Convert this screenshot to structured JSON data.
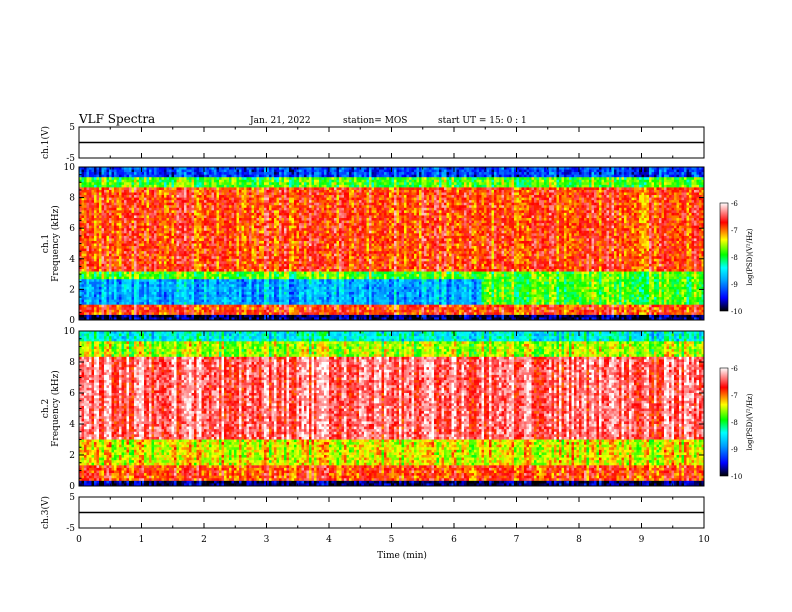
{
  "header": {
    "title": "VLF Spectra",
    "date": "Jan. 21, 2022",
    "station": "station= MOS",
    "start": "start  UT =   15: 0  : 1"
  },
  "colors": {
    "scale": [
      "#000000",
      "#0000ff",
      "#00a0ff",
      "#00ffff",
      "#00ff00",
      "#ffff00",
      "#ff0000",
      "#ffffff"
    ]
  },
  "chart_data": [
    {
      "type": "line",
      "panel": "ch1-waveform",
      "ylabel": "ch.1(V)",
      "ylim": [
        -5,
        5
      ],
      "yticks": [
        "5",
        "-5"
      ],
      "x": [
        0,
        10
      ],
      "series": [
        {
          "values": [
            0.0,
            0.0
          ]
        }
      ]
    },
    {
      "type": "heatmap",
      "panel": "ch1-spectrogram",
      "ylabel_channel": "ch.1",
      "ylabel": "Frequency (kHz)",
      "ylim": [
        0,
        10
      ],
      "yticks": [
        "0",
        "2",
        "4",
        "6",
        "8",
        "10"
      ],
      "xlim": [
        0,
        10
      ],
      "colorbar": {
        "label": "log(PSD)(V²/Hz)",
        "range": [
          -10,
          -6
        ],
        "ticks": [
          "-6",
          "-7",
          "-8",
          "-9",
          "-10"
        ]
      }
    },
    {
      "type": "heatmap",
      "panel": "ch2-spectrogram",
      "ylabel_channel": "ch.2",
      "ylabel": "Frequency (kHz)",
      "ylim": [
        0,
        10
      ],
      "yticks": [
        "0",
        "2",
        "4",
        "6",
        "8",
        "10"
      ],
      "xlim": [
        0,
        10
      ],
      "colorbar": {
        "label": "log(PSD)(V²/Hz)",
        "range": [
          -10,
          -6
        ],
        "ticks": [
          "-6",
          "-7",
          "-8",
          "-9",
          "-10"
        ]
      }
    },
    {
      "type": "line",
      "panel": "ch3-waveform",
      "ylabel": "ch.3(V)",
      "ylim": [
        -5,
        5
      ],
      "yticks": [
        "5",
        "-5"
      ],
      "x": [
        0,
        10
      ],
      "series": [
        {
          "values": [
            0.0,
            0.0
          ]
        }
      ]
    }
  ],
  "xaxis": {
    "label": "Time  (min)",
    "ticks": [
      "0",
      "1",
      "2",
      "3",
      "4",
      "5",
      "6",
      "7",
      "8",
      "9",
      "10"
    ]
  }
}
